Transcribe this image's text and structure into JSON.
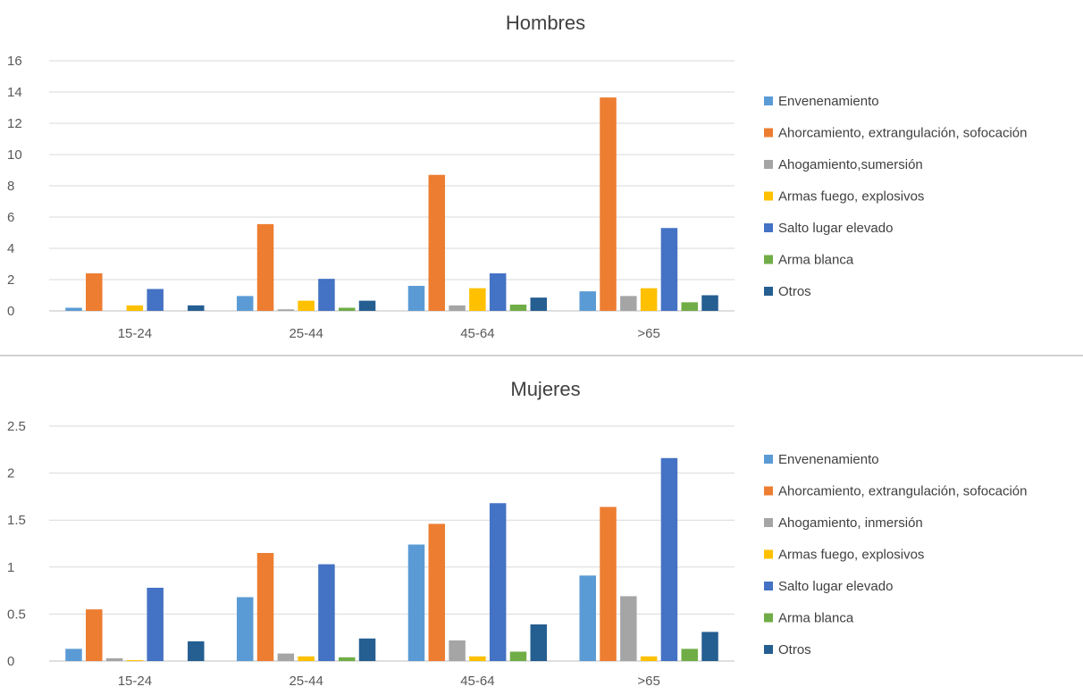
{
  "chart_data": [
    {
      "type": "bar",
      "title": "Hombres",
      "xlabel": "",
      "ylabel": "",
      "ylim": [
        0,
        16
      ],
      "yticks": [
        "0",
        "2",
        "4",
        "6",
        "8",
        "10",
        "12",
        "14",
        "16"
      ],
      "grid": true,
      "legend_position": "right",
      "categories": [
        "15-24",
        "25-44",
        "45-64",
        ">65"
      ],
      "series": [
        {
          "name": "Envenenamiento",
          "color": "#5B9BD5",
          "values": [
            0.2,
            0.95,
            1.6,
            1.25
          ]
        },
        {
          "name": "Ahorcamiento, extrangulación, sofocación",
          "color": "#ED7D31",
          "values": [
            2.4,
            5.55,
            8.7,
            13.65
          ]
        },
        {
          "name": "Ahogamiento,sumersión",
          "color": "#A5A5A5",
          "values": [
            0.0,
            0.1,
            0.35,
            0.95
          ]
        },
        {
          "name": "Armas fuego, explosivos",
          "color": "#FFC000",
          "values": [
            0.35,
            0.65,
            1.45,
            1.45
          ]
        },
        {
          "name": "Salto lugar elevado",
          "color": "#4472C4",
          "values": [
            1.4,
            2.05,
            2.4,
            5.3
          ]
        },
        {
          "name": "Arma blanca",
          "color": "#70AD47",
          "values": [
            0.0,
            0.2,
            0.4,
            0.55
          ]
        },
        {
          "name": "Otros",
          "color": "#255E91",
          "values": [
            0.35,
            0.65,
            0.85,
            1.0
          ]
        }
      ]
    },
    {
      "type": "bar",
      "title": "Mujeres",
      "xlabel": "",
      "ylabel": "",
      "ylim": [
        0,
        2.5
      ],
      "yticks": [
        "0",
        "0.5",
        "1",
        "1.5",
        "2",
        "2.5"
      ],
      "grid": true,
      "legend_position": "right",
      "categories": [
        "15-24",
        "25-44",
        "45-64",
        ">65"
      ],
      "series": [
        {
          "name": "Envenenamiento",
          "color": "#5B9BD5",
          "values": [
            0.13,
            0.68,
            1.24,
            0.91
          ]
        },
        {
          "name": "Ahorcamiento, extrangulación, sofocación",
          "color": "#ED7D31",
          "values": [
            0.55,
            1.15,
            1.46,
            1.64
          ]
        },
        {
          "name": "Ahogamiento, inmersión",
          "color": "#A5A5A5",
          "values": [
            0.03,
            0.08,
            0.22,
            0.69
          ]
        },
        {
          "name": "Armas fuego, explosivos",
          "color": "#FFC000",
          "values": [
            0.01,
            0.05,
            0.05,
            0.05
          ]
        },
        {
          "name": "Salto lugar elevado",
          "color": "#4472C4",
          "values": [
            0.78,
            1.03,
            1.68,
            2.16
          ]
        },
        {
          "name": "Arma blanca",
          "color": "#70AD47",
          "values": [
            0.0,
            0.04,
            0.1,
            0.13
          ]
        },
        {
          "name": "Otros",
          "color": "#255E91",
          "values": [
            0.21,
            0.24,
            0.39,
            0.31
          ]
        }
      ]
    }
  ]
}
